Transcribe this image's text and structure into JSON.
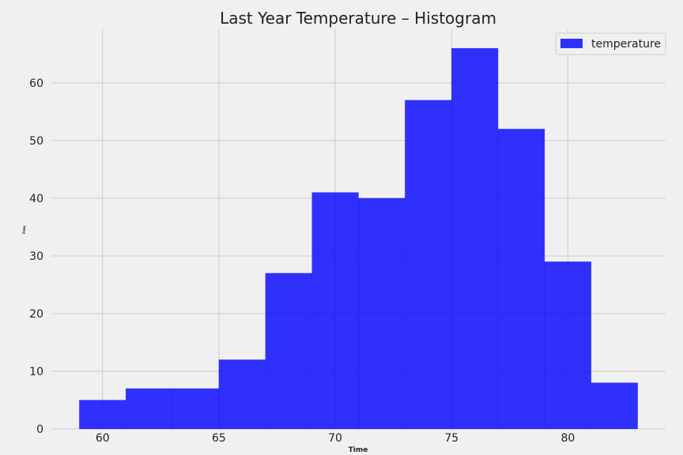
{
  "chart_data": {
    "type": "bar",
    "title": "Last Year Temperature – Histogram",
    "xlabel": "Time",
    "ylabel": "Freq",
    "xlim": [
      57.8,
      84.2
    ],
    "ylim": [
      0,
      69.3
    ],
    "xticks": [
      60,
      65,
      70,
      75,
      80
    ],
    "yticks": [
      0,
      10,
      20,
      30,
      40,
      50,
      60
    ],
    "grid": true,
    "legend_position": "top-right",
    "series": [
      {
        "name": "temperature",
        "color": "#0000ff",
        "opacity": 0.8,
        "bins": [
          {
            "x0": 59,
            "x1": 61,
            "value": 5
          },
          {
            "x0": 61,
            "x1": 63,
            "value": 7
          },
          {
            "x0": 63,
            "x1": 65,
            "value": 7
          },
          {
            "x0": 65,
            "x1": 67,
            "value": 12
          },
          {
            "x0": 67,
            "x1": 69,
            "value": 27
          },
          {
            "x0": 69,
            "x1": 71,
            "value": 41
          },
          {
            "x0": 71,
            "x1": 73,
            "value": 40
          },
          {
            "x0": 73,
            "x1": 75,
            "value": 57
          },
          {
            "x0": 75,
            "x1": 77,
            "value": 66
          },
          {
            "x0": 77,
            "x1": 79,
            "value": 52
          },
          {
            "x0": 79,
            "x1": 81,
            "value": 29
          },
          {
            "x0": 81,
            "x1": 83,
            "value": 8
          }
        ]
      }
    ]
  }
}
